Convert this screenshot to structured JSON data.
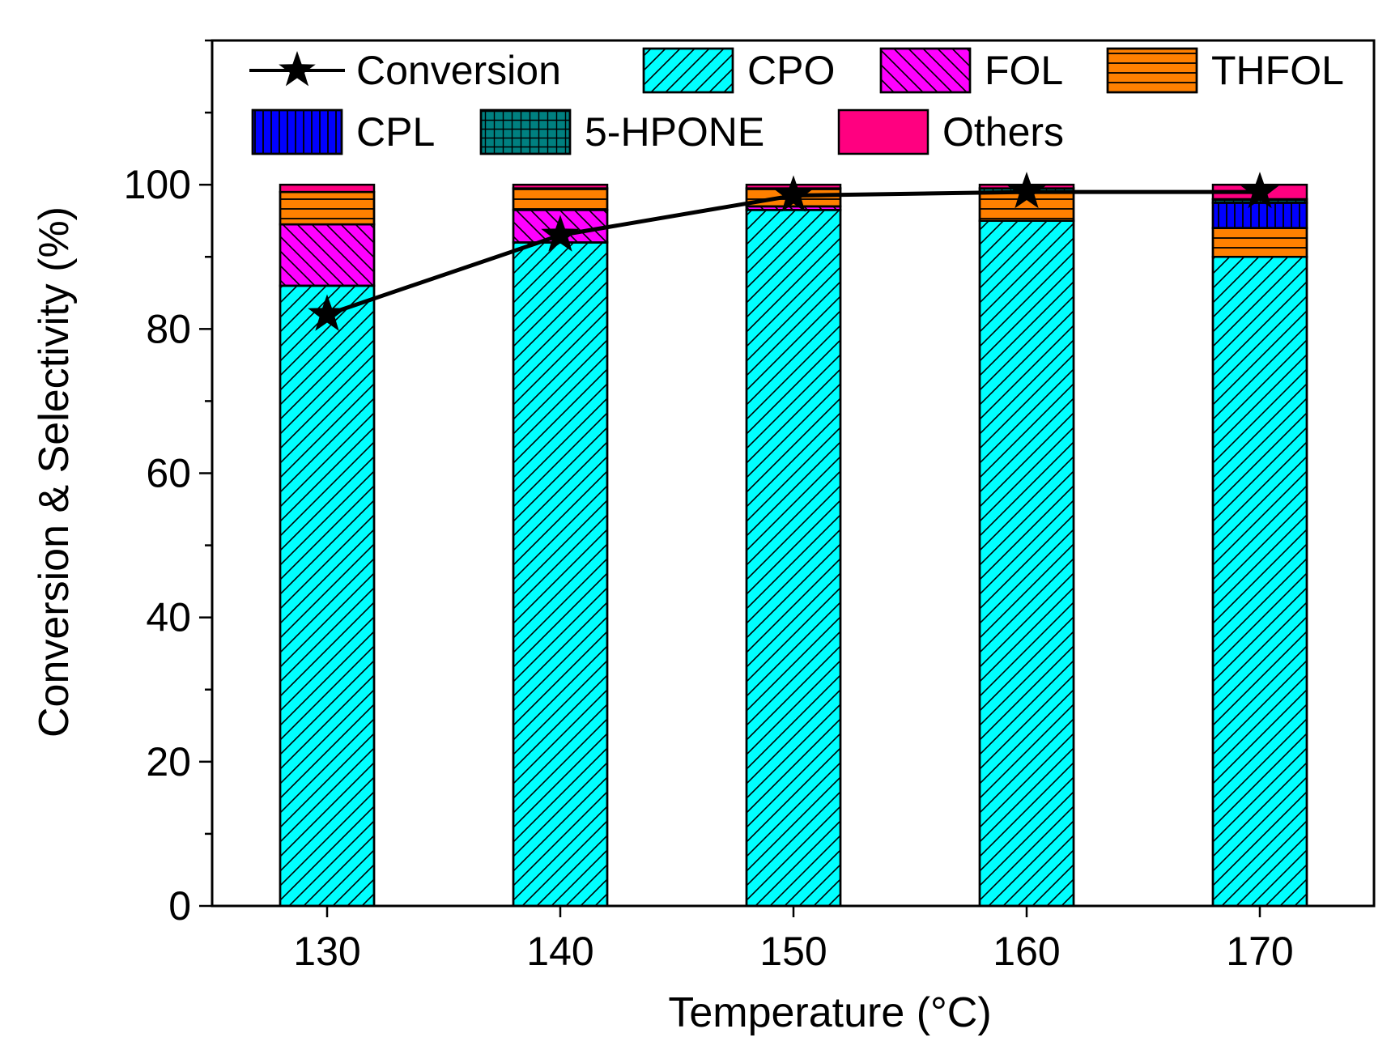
{
  "chart_data": {
    "type": "bar",
    "stacked": true,
    "title": "",
    "xlabel": "Temperature (°C)",
    "ylabel": "Conversion & Selectivity (%)",
    "ylim": [
      0,
      120
    ],
    "yticks": [
      0,
      20,
      40,
      60,
      80,
      100
    ],
    "categories": [
      "130",
      "140",
      "150",
      "160",
      "170"
    ],
    "series": [
      {
        "name": "CPO",
        "values": [
          86,
          92,
          96.5,
          95,
          90
        ],
        "color": "#00FFFF",
        "pattern": "diag-right"
      },
      {
        "name": "FOL",
        "values": [
          8.5,
          4.5,
          0.5,
          0,
          0
        ],
        "color": "#FF00FF",
        "pattern": "diag-left"
      },
      {
        "name": "THFOL",
        "values": [
          4.5,
          3,
          2.5,
          4,
          4
        ],
        "color": "#FF8000",
        "pattern": "horizontal"
      },
      {
        "name": "CPL",
        "values": [
          0,
          0,
          0,
          0,
          3.5
        ],
        "color": "#0000FF",
        "pattern": "vertical"
      },
      {
        "name": "5-HPONE",
        "values": [
          0,
          0,
          0,
          0.5,
          0.5
        ],
        "color": "#008080",
        "pattern": "grid"
      },
      {
        "name": "Others",
        "values": [
          1,
          0.5,
          0.5,
          0.5,
          2
        ],
        "color": "#FF0080",
        "pattern": "none"
      }
    ],
    "line_series": {
      "name": "Conversion",
      "values": [
        82,
        93,
        98.5,
        99,
        99
      ],
      "marker": "star",
      "color": "#000000"
    },
    "legend": {
      "position": "top-inside",
      "rows": [
        [
          "Conversion",
          "CPO",
          "FOL",
          "THFOL"
        ],
        [
          "CPL",
          "5-HPONE",
          "Others"
        ]
      ]
    }
  }
}
